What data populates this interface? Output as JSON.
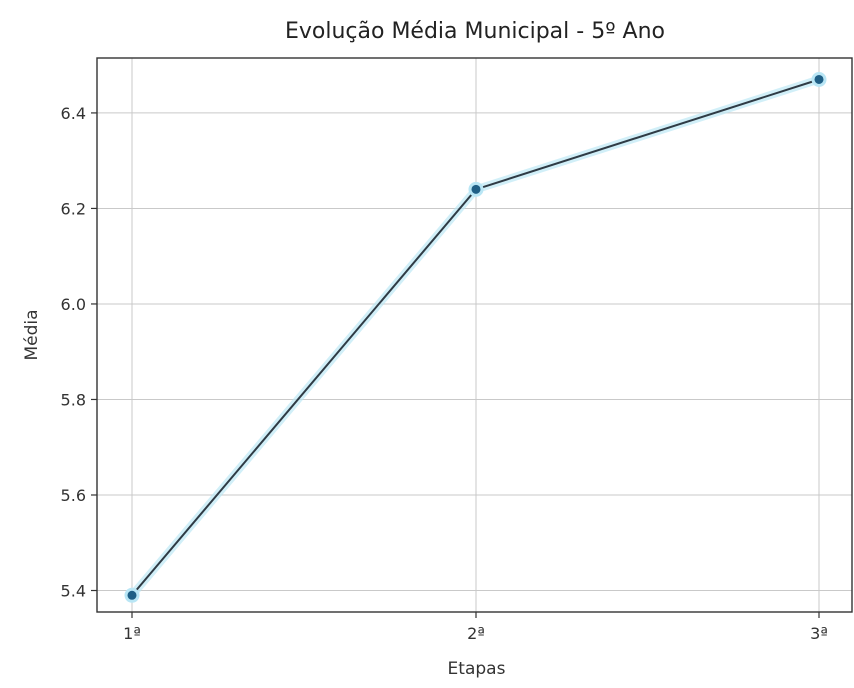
{
  "chart_data": {
    "type": "line",
    "title": "Evolução Média Municipal - 5º Ano",
    "xlabel": "Etapas",
    "ylabel": "Média",
    "categories": [
      "1ª",
      "2ª",
      "3ª"
    ],
    "series": [
      {
        "values": [
          5.39,
          6.24,
          6.47
        ]
      }
    ],
    "ylim": [
      5.355,
      6.515
    ],
    "yticks": [
      5.4,
      5.6,
      5.8,
      6.0,
      6.2,
      6.4
    ],
    "ytick_labels": [
      "5.4",
      "5.6",
      "5.8",
      "6.0",
      "6.2",
      "6.4"
    ],
    "grid": true,
    "colors": {
      "line": "#2f3b45",
      "marker": "#1f5f86",
      "glow": "#b9e6f5"
    }
  }
}
